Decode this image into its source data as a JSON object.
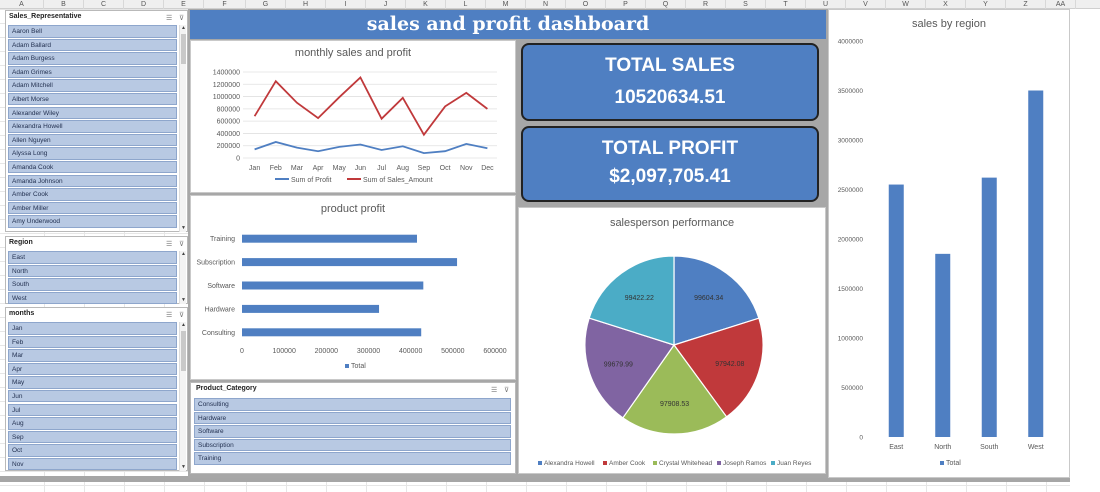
{
  "sheet": {
    "columns": [
      "A",
      "B",
      "C",
      "D",
      "E",
      "F",
      "G",
      "H",
      "I",
      "J",
      "K",
      "L",
      "M",
      "N",
      "O",
      "P",
      "Q",
      "R",
      "S",
      "T",
      "U",
      "V",
      "W",
      "X",
      "Y",
      "Z",
      "AA"
    ]
  },
  "slicers": {
    "sales_rep": {
      "title": "Sales_Representative",
      "items": [
        "Aaron Bell",
        "Adam Ballard",
        "Adam Burgess",
        "Adam Grimes",
        "Adam Mitchell",
        "Albert Morse",
        "Alexander Wiley",
        "Alexandra Howell",
        "Allen Nguyen",
        "Alyssa Long",
        "Amanda Cook",
        "Amanda Johnson",
        "Amber Cook",
        "Amber Miller",
        "Amy Underwood"
      ]
    },
    "region": {
      "title": "Region",
      "items": [
        "East",
        "North",
        "South",
        "West"
      ]
    },
    "months": {
      "title": "months",
      "items": [
        "Jan",
        "Feb",
        "Mar",
        "Apr",
        "May",
        "Jun",
        "Jul",
        "Aug",
        "Sep",
        "Oct",
        "Nov"
      ]
    },
    "product_category": {
      "title": "Product_Category",
      "items": [
        "Consulting",
        "Hardware",
        "Software",
        "Subscription",
        "Training"
      ]
    }
  },
  "dashboard": {
    "title": "sales and profit dashboard",
    "kpi_sales": {
      "label": "TOTAL SALES",
      "value": "10520634.51"
    },
    "kpi_profit": {
      "label": "TOTAL PROFIT",
      "value": "$2,097,705.41"
    }
  },
  "chart_data": [
    {
      "type": "line",
      "title": "monthly sales and profit",
      "categories": [
        "Jan",
        "Feb",
        "Mar",
        "Apr",
        "May",
        "Jun",
        "Jul",
        "Aug",
        "Sep",
        "Oct",
        "Nov",
        "Dec"
      ],
      "yticks": [
        "0",
        "200000",
        "400000",
        "600000",
        "800000",
        "1000000",
        "1200000",
        "1400000"
      ],
      "ylim": [
        0,
        1400000
      ],
      "series": [
        {
          "name": "Sum of Profit",
          "color": "#4f7fc2",
          "values": [
            140000,
            260000,
            170000,
            110000,
            180000,
            220000,
            130000,
            190000,
            80000,
            110000,
            230000,
            160000
          ]
        },
        {
          "name": "Sum of Sales_Amount",
          "color": "#c0393b",
          "values": [
            680000,
            1250000,
            900000,
            650000,
            990000,
            1310000,
            640000,
            980000,
            380000,
            840000,
            1060000,
            800000
          ]
        }
      ]
    },
    {
      "type": "bar",
      "orientation": "horizontal",
      "title": "product profit",
      "categories": [
        "Training",
        "Subscription",
        "Software",
        "Hardware",
        "Consulting"
      ],
      "values": [
        415000,
        510000,
        430000,
        325000,
        425000
      ],
      "xticks": [
        "0",
        "100000",
        "200000",
        "300000",
        "400000",
        "500000",
        "600000"
      ],
      "xlim": [
        0,
        600000
      ],
      "legend": "Total",
      "color": "#4f7fc2"
    },
    {
      "type": "pie",
      "title": "salesperson performance",
      "slices": [
        {
          "name": "Alexandra Howell",
          "value": 99604.34,
          "label": "99604.34",
          "color": "#4f7fc2"
        },
        {
          "name": "Amber Cook",
          "value": 97942.08,
          "label": "97942.08",
          "color": "#c0393b"
        },
        {
          "name": "Crystal Whitehead",
          "value": 97908.53,
          "label": "97908.53",
          "color": "#9bbb59"
        },
        {
          "name": "Joseph Ramos",
          "value": 99679.99,
          "label": "99679.99",
          "color": "#8064a2"
        },
        {
          "name": "Juan Reyes",
          "value": 99422.22,
          "label": "99422.22",
          "color": "#4bacc6"
        }
      ]
    },
    {
      "type": "bar",
      "title": "sales by region",
      "categories": [
        "East",
        "North",
        "South",
        "West"
      ],
      "values": [
        2550000,
        1850000,
        2620000,
        3500000
      ],
      "yticks": [
        "0",
        "500000",
        "1000000",
        "1500000",
        "2000000",
        "2500000",
        "3000000",
        "3500000",
        "4000000"
      ],
      "ylim": [
        0,
        4000000
      ],
      "legend": "Total",
      "color": "#4f7fc2"
    }
  ]
}
